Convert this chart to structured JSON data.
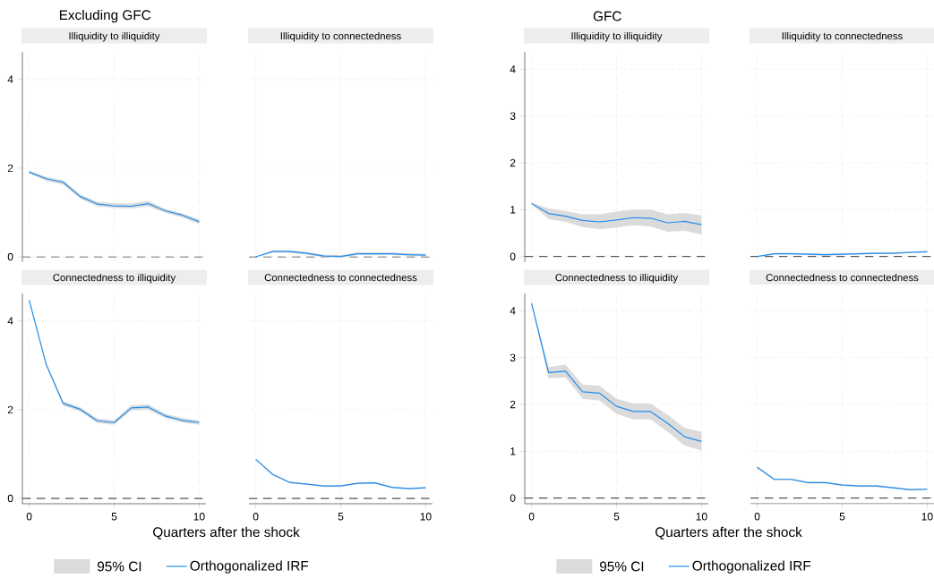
{
  "chart_data": [
    {
      "type": "line",
      "title": "Illiquidity to illiquidity",
      "annotations": [
        "Excluding GFC"
      ],
      "x": [
        0,
        1,
        2,
        3,
        4,
        5,
        6,
        7,
        8,
        9,
        10
      ],
      "xlim": [
        -0.4,
        10.4
      ],
      "ylim": [
        -0.12,
        4.62
      ],
      "xticks": [
        0,
        5,
        10
      ],
      "yticks": [
        0,
        2,
        4
      ],
      "grid": true,
      "tick_labels": "y",
      "ref_lines": [
        {
          "axis": "y",
          "value": 0,
          "color": "#555555",
          "line_style": "dashed"
        }
      ],
      "series": [
        {
          "color": "#1f8ef1",
          "values": [
            1.91,
            1.76,
            1.68,
            1.36,
            1.19,
            1.15,
            1.14,
            1.2,
            1.04,
            0.94,
            0.79
          ],
          "lower": [
            1.88,
            1.71,
            1.63,
            1.31,
            1.14,
            1.1,
            1.09,
            1.14,
            0.99,
            0.89,
            0.74
          ],
          "upper": [
            1.94,
            1.8,
            1.73,
            1.41,
            1.24,
            1.21,
            1.2,
            1.26,
            1.08,
            0.98,
            0.85
          ]
        }
      ]
    },
    {
      "type": "line",
      "title": "Illiquidity to connectedness",
      "x": [
        0,
        1,
        2,
        3,
        4,
        5,
        6,
        7,
        8,
        9,
        10
      ],
      "xlim": [
        -0.4,
        10.4
      ],
      "ylim": [
        -0.12,
        4.62
      ],
      "xticks": [
        0,
        5,
        10
      ],
      "yticks": [
        0,
        2,
        4
      ],
      "grid": true,
      "tick_labels": false,
      "ref_lines": [
        {
          "axis": "y",
          "value": 0,
          "color": "#555555",
          "line_style": "dashed"
        }
      ],
      "series": [
        {
          "color": "#1f8ef1",
          "values": [
            0,
            0.12,
            0.12,
            0.08,
            0.02,
            0.01,
            0.07,
            0.07,
            0.07,
            0.05,
            0.04
          ],
          "lower": [
            0,
            0.09,
            0.09,
            0.05,
            -0.01,
            -0.02,
            0.04,
            0.04,
            0.04,
            0.02,
            0.01
          ],
          "upper": [
            0,
            0.15,
            0.15,
            0.11,
            0.05,
            0.04,
            0.1,
            0.1,
            0.1,
            0.08,
            0.07
          ]
        }
      ]
    },
    {
      "type": "line",
      "title": "Connectedness to illiquidity",
      "xlabel": "Quarters after the shock",
      "legend": "bottom",
      "annotations": [
        "95% CI"
      ],
      "x": [
        0,
        1,
        2,
        3,
        4,
        5,
        6,
        7,
        8,
        9,
        10
      ],
      "xlim": [
        -0.4,
        10.4
      ],
      "ylim": [
        -0.12,
        4.62
      ],
      "xticks": [
        0,
        5,
        10
      ],
      "yticks": [
        0,
        2,
        4
      ],
      "grid": true,
      "ref_lines": [
        {
          "axis": "y",
          "value": 0,
          "color": "#555555",
          "line_style": "dashed"
        }
      ],
      "series": [
        {
          "name": "Orthogonalized IRF",
          "color": "#1f8ef1",
          "values": [
            4.47,
            3.02,
            2.14,
            2.01,
            1.75,
            1.71,
            2.04,
            2.06,
            1.86,
            1.76,
            1.71
          ],
          "lower": [
            4.45,
            3.0,
            2.09,
            1.96,
            1.7,
            1.66,
            1.98,
            2.0,
            1.81,
            1.71,
            1.66
          ],
          "upper": [
            4.49,
            3.04,
            2.19,
            2.06,
            1.8,
            1.76,
            2.1,
            2.12,
            1.91,
            1.81,
            1.76
          ]
        }
      ]
    },
    {
      "type": "line",
      "title": "Connectedness to connectedness",
      "x": [
        0,
        1,
        2,
        3,
        4,
        5,
        6,
        7,
        8,
        9,
        10
      ],
      "xlim": [
        -0.4,
        10.4
      ],
      "ylim": [
        -0.12,
        4.62
      ],
      "xticks": [
        0,
        5,
        10
      ],
      "yticks": [
        0,
        2,
        4
      ],
      "grid": true,
      "tick_labels": "x",
      "ref_lines": [
        {
          "axis": "y",
          "value": 0,
          "color": "#555555",
          "line_style": "dashed"
        }
      ],
      "series": [
        {
          "color": "#1f8ef1",
          "values": [
            0.88,
            0.54,
            0.36,
            0.32,
            0.28,
            0.28,
            0.34,
            0.35,
            0.25,
            0.22,
            0.24
          ],
          "lower": [
            0.86,
            0.52,
            0.34,
            0.31,
            0.26,
            0.26,
            0.32,
            0.33,
            0.23,
            0.2,
            0.22
          ],
          "upper": [
            0.9,
            0.56,
            0.38,
            0.34,
            0.3,
            0.3,
            0.36,
            0.37,
            0.27,
            0.24,
            0.26
          ]
        }
      ]
    },
    {
      "type": "line",
      "title": "Illiquidity to illiquidity",
      "annotations": [
        "GFC"
      ],
      "x": [
        0,
        1,
        2,
        3,
        4,
        5,
        6,
        7,
        8,
        9,
        10
      ],
      "xlim": [
        -0.4,
        10.4
      ],
      "ylim": [
        -0.12,
        4.37
      ],
      "xticks": [
        0,
        5,
        10
      ],
      "yticks": [
        0,
        1,
        2,
        3,
        4
      ],
      "grid": true,
      "tick_labels": "y",
      "ref_lines": [
        {
          "axis": "y",
          "value": 0,
          "color": "#555555",
          "line_style": "dashed"
        }
      ],
      "series": [
        {
          "color": "#1f8ef1",
          "values": [
            1.13,
            0.92,
            0.86,
            0.77,
            0.74,
            0.78,
            0.83,
            0.82,
            0.72,
            0.75,
            0.68
          ],
          "lower": [
            1.12,
            0.8,
            0.74,
            0.63,
            0.58,
            0.62,
            0.67,
            0.64,
            0.53,
            0.55,
            0.47
          ],
          "upper": [
            1.15,
            1.03,
            0.97,
            0.9,
            0.9,
            0.96,
            1.0,
            1.0,
            0.9,
            0.93,
            0.88
          ]
        }
      ]
    },
    {
      "type": "line",
      "title": "Illiquidity to connectedness",
      "x": [
        0,
        1,
        2,
        3,
        4,
        5,
        6,
        7,
        8,
        9,
        10
      ],
      "xlim": [
        -0.4,
        10.4
      ],
      "ylim": [
        -0.12,
        4.37
      ],
      "xticks": [
        0,
        5,
        10
      ],
      "yticks": [
        0,
        1,
        2,
        3,
        4
      ],
      "grid": true,
      "tick_labels": false,
      "ref_lines": [
        {
          "axis": "y",
          "value": 0,
          "color": "#555555",
          "line_style": "dashed"
        }
      ],
      "series": [
        {
          "color": "#1f8ef1",
          "values": [
            0,
            0.06,
            0.06,
            0.05,
            0.04,
            0.05,
            0.06,
            0.07,
            0.07,
            0.09,
            0.1
          ],
          "lower": [
            0,
            0.04,
            0.04,
            0.03,
            0.02,
            0.03,
            0.04,
            0.05,
            0.05,
            0.07,
            0.08
          ],
          "upper": [
            0,
            0.08,
            0.08,
            0.07,
            0.06,
            0.07,
            0.08,
            0.09,
            0.09,
            0.11,
            0.12
          ]
        }
      ]
    },
    {
      "type": "line",
      "title": "Connectedness to illiquidity",
      "xlabel": "Quarters after the shock",
      "legend": "bottom",
      "annotations": [
        "95% CI"
      ],
      "x": [
        0,
        1,
        2,
        3,
        4,
        5,
        6,
        7,
        8,
        9,
        10
      ],
      "xlim": [
        -0.4,
        10.4
      ],
      "ylim": [
        -0.12,
        4.37
      ],
      "xticks": [
        0,
        5,
        10
      ],
      "yticks": [
        0,
        1,
        2,
        3,
        4
      ],
      "grid": true,
      "ref_lines": [
        {
          "axis": "y",
          "value": 0,
          "color": "#555555",
          "line_style": "dashed"
        }
      ],
      "series": [
        {
          "name": "Orthogonalized IRF",
          "color": "#1f8ef1",
          "values": [
            4.16,
            2.68,
            2.71,
            2.27,
            2.24,
            1.96,
            1.85,
            1.85,
            1.6,
            1.31,
            1.21
          ],
          "lower": [
            4.14,
            2.56,
            2.58,
            2.12,
            2.08,
            1.8,
            1.68,
            1.68,
            1.42,
            1.12,
            1.02
          ],
          "upper": [
            4.18,
            2.8,
            2.85,
            2.42,
            2.4,
            2.12,
            2.02,
            2.02,
            1.78,
            1.5,
            1.42
          ]
        }
      ]
    },
    {
      "type": "line",
      "title": "Connectedness to connectedness",
      "x": [
        0,
        1,
        2,
        3,
        4,
        5,
        6,
        7,
        8,
        9,
        10
      ],
      "xlim": [
        -0.4,
        10.4
      ],
      "ylim": [
        -0.12,
        4.37
      ],
      "xticks": [
        0,
        5,
        10
      ],
      "yticks": [
        0,
        1,
        2,
        3,
        4
      ],
      "grid": true,
      "tick_labels": "x",
      "ref_lines": [
        {
          "axis": "y",
          "value": 0,
          "color": "#555555",
          "line_style": "dashed"
        }
      ],
      "series": [
        {
          "color": "#1f8ef1",
          "values": [
            0.66,
            0.4,
            0.4,
            0.33,
            0.33,
            0.28,
            0.26,
            0.26,
            0.22,
            0.18,
            0.19
          ],
          "lower": [
            0.64,
            0.38,
            0.38,
            0.31,
            0.31,
            0.26,
            0.24,
            0.24,
            0.2,
            0.16,
            0.17
          ],
          "upper": [
            0.68,
            0.42,
            0.42,
            0.35,
            0.35,
            0.3,
            0.28,
            0.28,
            0.24,
            0.2,
            0.21
          ]
        }
      ]
    }
  ]
}
